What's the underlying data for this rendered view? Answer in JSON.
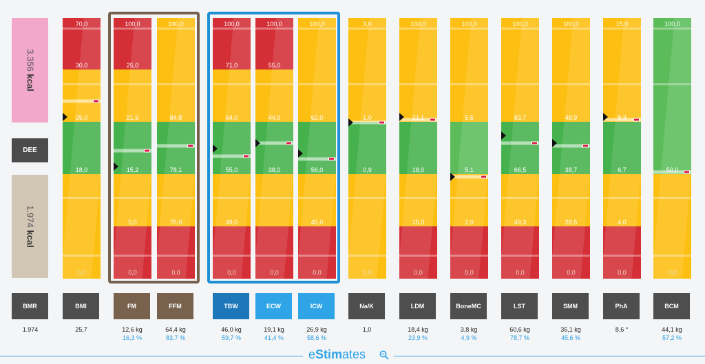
{
  "left_panel": {
    "top_value": "3.356",
    "top_unit": "kcal",
    "middle_label": "DEE",
    "bottom_value": "1.974",
    "bottom_unit": "kcal",
    "colors": {
      "top": "#f2a8cb",
      "bottom": "#d2c6b4"
    }
  },
  "metrics": [
    {
      "key": "bmr",
      "label": "BMR",
      "value": "1.974",
      "percent": ""
    },
    {
      "key": "bmi",
      "label": "BMI",
      "value": "25,7",
      "percent": "",
      "top": "70,0",
      "bottom": "0,0",
      "levels": [
        "30,0",
        "25,0",
        "18,0",
        ""
      ],
      "pointer_level": 0.62,
      "marker_level": 0.68
    },
    {
      "key": "fm",
      "label": "FM",
      "value": "12,6 kg",
      "percent": "16,3 %",
      "top": "100,0",
      "bottom": "0,0",
      "levels": [
        "25,0",
        "21,9",
        "15,2",
        "5,0"
      ],
      "pointer_level": 0.43,
      "marker_level": 0.49
    },
    {
      "key": "ffm",
      "label": "FFM",
      "value": "64,4 kg",
      "percent": "83,7 %",
      "top": "100,0",
      "bottom": "0,0",
      "levels": [
        "",
        "84,8",
        "78,1",
        "75,0"
      ],
      "pointer_level": null,
      "marker_level": 0.51
    },
    {
      "key": "tbw",
      "label": "TBW",
      "value": "46,0 kg",
      "percent": "59,7 %",
      "top": "100,0",
      "bottom": "0,0",
      "levels": [
        "71,0",
        "64,0",
        "55,0",
        "49,0"
      ],
      "pointer_level": 0.5,
      "marker_level": 0.47
    },
    {
      "key": "ecw",
      "label": "ECW",
      "value": "19,1 kg",
      "percent": "41,4 %",
      "top": "100,0",
      "bottom": "0,0",
      "levels": [
        "55,0",
        "44,0",
        "38,0",
        ""
      ],
      "pointer_level": 0.52,
      "marker_level": 0.52
    },
    {
      "key": "icw",
      "label": "ICW",
      "value": "26,9 kg",
      "percent": "58,6 %",
      "top": "100,0",
      "bottom": "0,0",
      "levels": [
        "",
        "62,0",
        "56,0",
        "45,0"
      ],
      "pointer_level": 0.48,
      "marker_level": 0.46
    },
    {
      "key": "nak",
      "label": "Na/K",
      "value": "1,0",
      "percent": "",
      "top": "3,0",
      "bottom": "0,0",
      "levels": [
        "",
        "1,0",
        "0,9",
        ""
      ],
      "pointer_level": 0.6,
      "marker_level": 0.6
    },
    {
      "key": "ldm",
      "label": "LDM",
      "value": "18,4 kg",
      "percent": "23,9 %",
      "top": "100,0",
      "bottom": "0,0",
      "levels": [
        "",
        "21,1",
        "18,0",
        "15,0"
      ],
      "pointer_level": 0.62,
      "marker_level": 0.61
    },
    {
      "key": "bonemc",
      "label": "BoneMC",
      "value": "3,8 kg",
      "percent": "4,9 %",
      "top": "100,0",
      "bottom": "0,0",
      "levels": [
        "",
        "5,5",
        "5,1",
        "2,0"
      ],
      "pointer_level": 0.39,
      "marker_level": 0.39
    },
    {
      "key": "lst",
      "label": "LST",
      "value": "60,6 kg",
      "percent": "78,7 %",
      "top": "100,0",
      "bottom": "0,0",
      "levels": [
        "",
        "83,7",
        "66,5",
        "49,3"
      ],
      "pointer_level": 0.55,
      "marker_level": 0.52
    },
    {
      "key": "smm",
      "label": "SMM",
      "value": "35,1 kg",
      "percent": "45,6 %",
      "top": "100,0",
      "bottom": "0,0",
      "levels": [
        "",
        "48,9",
        "38,7",
        "28,5"
      ],
      "pointer_level": 0.52,
      "marker_level": 0.51
    },
    {
      "key": "pha",
      "label": "PhA",
      "value": "8,6 °",
      "percent": "",
      "top": "15,0",
      "bottom": "0,0",
      "levels": [
        "",
        "8,3",
        "6,7",
        "4,0"
      ],
      "pointer_level": 0.62,
      "marker_level": 0.61
    },
    {
      "key": "bcm",
      "label": "BCM",
      "value": "44,1 kg",
      "percent": "57,2 %",
      "top": "100,0",
      "bottom": "0,0",
      "levels": [
        "",
        "",
        "50,0",
        ""
      ],
      "pointer_level": null,
      "marker_level": 0.41
    }
  ],
  "footer": {
    "brand_prefix": "e",
    "brand_bold": "Stim",
    "brand_suffix": "ates",
    "icon": "magnifier-icon",
    "accent": "#2fa4e7"
  }
}
